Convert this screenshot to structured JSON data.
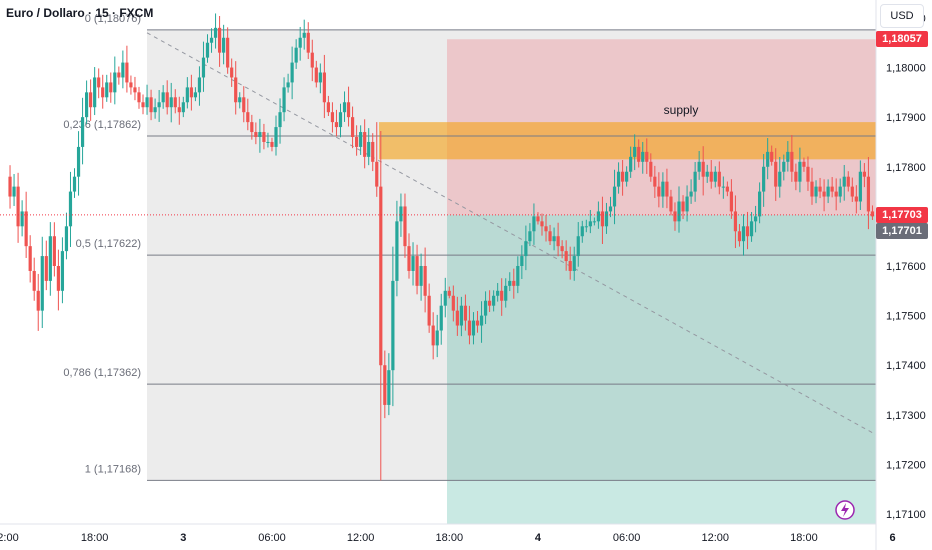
{
  "header": {
    "title": "Euro / Dollaro · 15 · FXCM",
    "currency": "USD"
  },
  "price_badges": [
    {
      "label": "1,18057",
      "value": 1.18057,
      "color": "#f23645"
    },
    {
      "label": "1,17703",
      "value": 1.17703,
      "color": "#f23645"
    },
    {
      "label": "1,17701",
      "value": 1.17701,
      "color": "#6a6d78"
    }
  ],
  "chart_data": {
    "type": "candlestick",
    "ylim": [
      1.1708,
      1.1812
    ],
    "y_ticks": [
      "1,18100",
      "1,18000",
      "1,17900",
      "1,17800",
      "1,17700",
      "1,17600",
      "1,17500",
      "1,17400",
      "1,17300",
      "1,17200",
      "1,17100"
    ],
    "y_tick_values": [
      1.181,
      1.18,
      1.179,
      1.178,
      1.177,
      1.176,
      1.175,
      1.174,
      1.173,
      1.172,
      1.171
    ],
    "x_ticks": [
      "2:00",
      "18:00",
      "3",
      "06:00",
      "12:00",
      "18:00",
      "4",
      "06:00",
      "12:00",
      "18:00",
      "6"
    ],
    "x_tick_index": [
      0,
      22,
      44,
      66,
      88,
      110,
      132,
      154,
      176,
      198,
      220
    ],
    "fib_levels": [
      {
        "label": "0 (1,18076)",
        "value": 1.18076
      },
      {
        "label": "0,236 (1,17862)",
        "value": 1.17862
      },
      {
        "label": "0,5 (1,17622)",
        "value": 1.17622
      },
      {
        "label": "0,786 (1,17362)",
        "value": 1.17362
      },
      {
        "label": "1 (1,17168)",
        "value": 1.17168
      }
    ],
    "annotation": "supply",
    "supply_zone": [
      1.17815,
      1.1789
    ],
    "trade_box": {
      "top": 1.18057,
      "entry": 1.17703,
      "stop_bottom": 1.1716
    },
    "trendline": {
      "from": 1.1807,
      "to": 1.1726
    },
    "up_color": "#26a69a",
    "down_color": "#ef5350",
    "closes": [
      1.1778,
      1.1774,
      1.1776,
      1.1768,
      1.1771,
      1.1764,
      1.1759,
      1.1755,
      1.1751,
      1.1762,
      1.1757,
      1.1766,
      1.176,
      1.1755,
      1.1763,
      1.1768,
      1.1775,
      1.1778,
      1.1784,
      1.179,
      1.1795,
      1.1792,
      1.1798,
      1.1796,
      1.1794,
      1.1797,
      1.1795,
      1.1799,
      1.1798,
      1.1801,
      1.1797,
      1.1796,
      1.1795,
      1.1793,
      1.1792,
      1.1794,
      1.1791,
      1.1792,
      1.1793,
      1.1795,
      1.1792,
      1.1794,
      1.1792,
      1.1791,
      1.1793,
      1.1796,
      1.1794,
      1.1795,
      1.1798,
      1.1802,
      1.1805,
      1.1806,
      1.1808,
      1.1803,
      1.1806,
      1.18,
      1.1798,
      1.1793,
      1.1794,
      1.1791,
      1.1789,
      1.1787,
      1.1786,
      1.1787,
      1.1785,
      1.1785,
      1.1784,
      1.1788,
      1.1791,
      1.1796,
      1.1797,
      1.1801,
      1.1804,
      1.1806,
      1.1807,
      1.1803,
      1.18,
      1.1797,
      1.1799,
      1.1793,
      1.1791,
      1.1789,
      1.1788,
      1.1791,
      1.1793,
      1.179,
      1.1786,
      1.1784,
      1.1787,
      1.1782,
      1.1785,
      1.1781,
      1.1776,
      1.174,
      1.1732,
      1.1739,
      1.1757,
      1.1769,
      1.1772,
      1.1764,
      1.1759,
      1.1762,
      1.1756,
      1.176,
      1.1754,
      1.1748,
      1.1744,
      1.1747,
      1.1752,
      1.1755,
      1.1754,
      1.1751,
      1.1748,
      1.1752,
      1.1749,
      1.1746,
      1.1749,
      1.1748,
      1.175,
      1.1753,
      1.1752,
      1.1754,
      1.1755,
      1.1753,
      1.1756,
      1.1757,
      1.1756,
      1.176,
      1.1762,
      1.1765,
      1.1767,
      1.177,
      1.1769,
      1.1768,
      1.1767,
      1.1765,
      1.1766,
      1.1764,
      1.1763,
      1.1761,
      1.1759,
      1.1762,
      1.1766,
      1.1768,
      1.1768,
      1.1769,
      1.1769,
      1.1771,
      1.1768,
      1.1771,
      1.1772,
      1.1776,
      1.1779,
      1.1777,
      1.1779,
      1.1782,
      1.1784,
      1.1781,
      1.1783,
      1.1781,
      1.1778,
      1.1776,
      1.1774,
      1.1777,
      1.1774,
      1.1771,
      1.1769,
      1.1773,
      1.1771,
      1.1774,
      1.1775,
      1.1779,
      1.1781,
      1.1778,
      1.1779,
      1.1777,
      1.1779,
      1.1776,
      1.1776,
      1.1775,
      1.1771,
      1.1767,
      1.1765,
      1.1768,
      1.1766,
      1.1769,
      1.177,
      1.1775,
      1.178,
      1.1783,
      1.1781,
      1.1776,
      1.1779,
      1.1781,
      1.1783,
      1.1779,
      1.1777,
      1.1781,
      1.178,
      1.1777,
      1.1774,
      1.1776,
      1.1775,
      1.1774,
      1.1776,
      1.1775,
      1.1774,
      1.1776,
      1.1778,
      1.1776,
      1.1774,
      1.1773,
      1.1779,
      1.1778,
      1.1771,
      1.177
    ]
  }
}
